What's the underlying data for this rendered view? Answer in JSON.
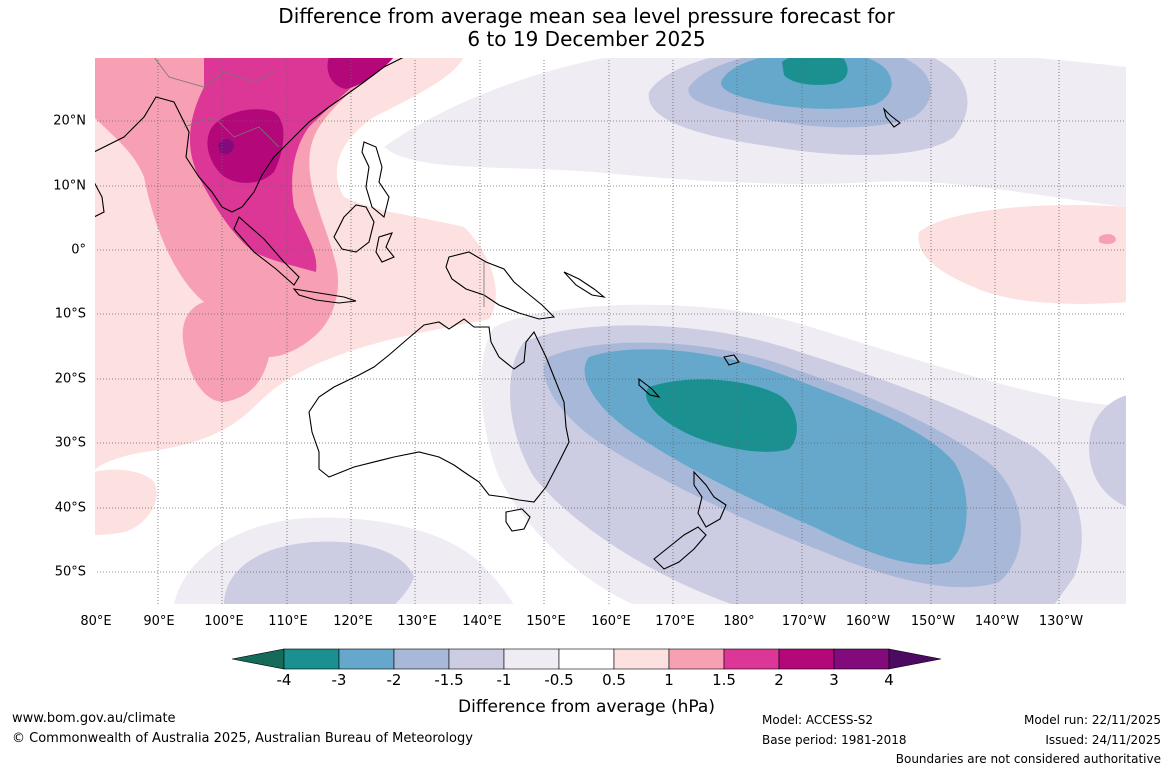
{
  "title_line1": "Difference from average mean sea level pressure forecast for",
  "title_line2": "6 to 19 December 2025",
  "longitude_labels": [
    "80°E",
    "90°E",
    "100°E",
    "110°E",
    "120°E",
    "130°E",
    "140°E",
    "150°E",
    "160°E",
    "170°E",
    "180°",
    "170°W",
    "160°W",
    "150°W",
    "140°W",
    "130°W"
  ],
  "latitude_labels": [
    "20°N",
    "10°N",
    "0°",
    "10°S",
    "20°S",
    "30°S",
    "40°S",
    "50°S"
  ],
  "legend": {
    "title": "Difference from average (hPa)",
    "tick_labels": [
      "-4",
      "-3",
      "-2",
      "-1.5",
      "-1",
      "-0.5",
      "0.5",
      "1",
      "1.5",
      "2",
      "3",
      "4"
    ],
    "colors": [
      "#146b5a",
      "#1a9090",
      "#65a8cc",
      "#a8b8d8",
      "#cccce2",
      "#f0ecf4",
      "#ffffff",
      "#fde0e0",
      "#f7a0b4",
      "#dc3796",
      "#b4087a",
      "#830a7c",
      "#4d0a62"
    ]
  },
  "footer": {
    "website": "www.bom.gov.au/climate",
    "copyright": "© Commonwealth of Australia 2025, Australian Bureau of Meteorology",
    "model": "Model: ACCESS-S2",
    "base_period": "Base period: 1981-2018",
    "model_run": "Model run: 22/11/2025",
    "issued": "Issued: 24/11/2025",
    "disclaimer": "Boundaries are not considered authoritative"
  }
}
